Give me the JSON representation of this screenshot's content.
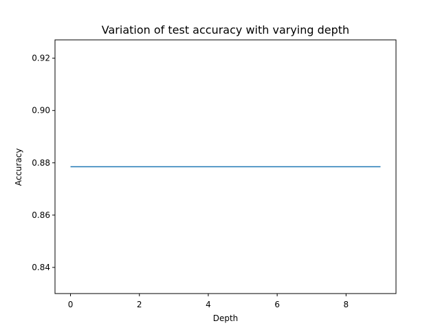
{
  "chart_data": {
    "type": "line",
    "title": "Variation of test accuracy with varying depth",
    "xlabel": "Depth",
    "ylabel": "Accuracy",
    "xlim": [
      -0.45,
      9.45
    ],
    "ylim": [
      0.83,
      0.927
    ],
    "xticks": [
      0,
      2,
      4,
      6,
      8
    ],
    "xtick_labels": [
      "0",
      "2",
      "4",
      "6",
      "8"
    ],
    "yticks": [
      0.84,
      0.86,
      0.88,
      0.9,
      0.92
    ],
    "ytick_labels": [
      "0.84",
      "0.86",
      "0.88",
      "0.90",
      "0.92"
    ],
    "grid": false,
    "series": [
      {
        "color": "#1f77b4",
        "x": [
          0,
          1,
          2,
          3,
          4,
          5,
          6,
          7,
          8,
          9
        ],
        "y": [
          0.8785,
          0.8785,
          0.8785,
          0.8785,
          0.8785,
          0.8785,
          0.8785,
          0.8785,
          0.8785,
          0.8785
        ]
      }
    ]
  }
}
